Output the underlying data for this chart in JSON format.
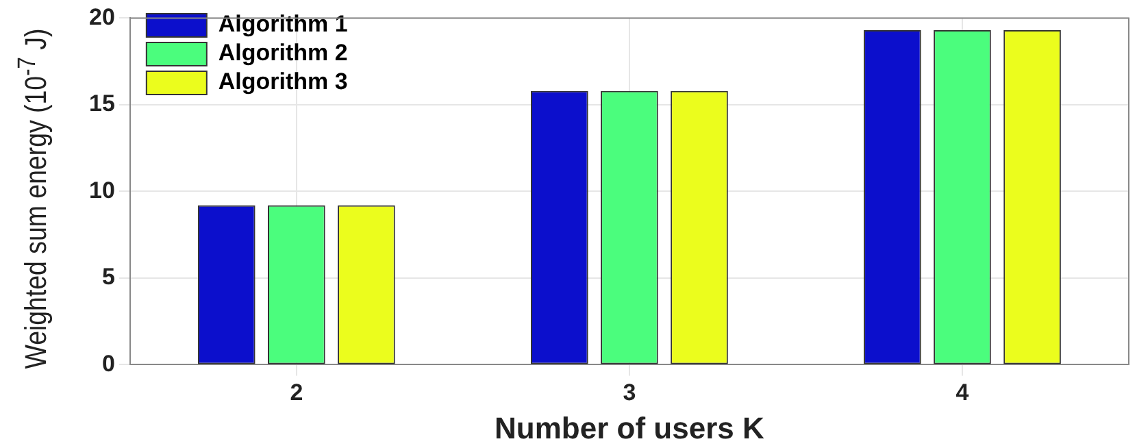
{
  "chart_data": {
    "type": "bar",
    "xlabel": "Number of users K",
    "ylabel": "Weighted sum energy (10$^{-7}$ J)",
    "categories": [
      "2",
      "3",
      "4"
    ],
    "series": [
      {
        "name": "Algorithm 1",
        "color": "#0c0fcc",
        "values": [
          9.2,
          15.8,
          19.3
        ]
      },
      {
        "name": "Algorithm 2",
        "color": "#4bfd7d",
        "values": [
          9.2,
          15.8,
          19.3
        ]
      },
      {
        "name": "Algorithm 3",
        "color": "#ebfd1d",
        "values": [
          9.2,
          15.8,
          19.3
        ]
      }
    ],
    "ylim": [
      0,
      20
    ],
    "yticks": [
      0,
      5,
      10,
      15,
      20
    ],
    "grid": true,
    "legend": "top left"
  }
}
